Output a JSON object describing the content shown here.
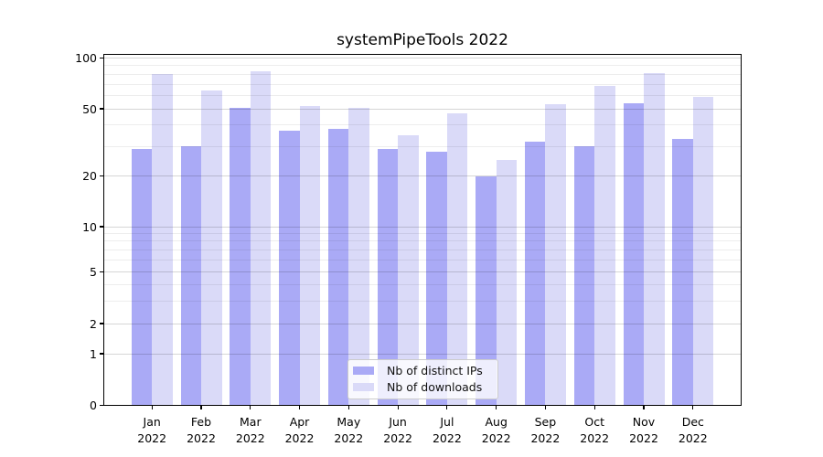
{
  "chart_data": {
    "type": "bar",
    "title": "systemPipeTools 2022",
    "year": "2022",
    "months": [
      "Jan",
      "Feb",
      "Mar",
      "Apr",
      "May",
      "Jun",
      "Jul",
      "Aug",
      "Sep",
      "Oct",
      "Nov",
      "Dec"
    ],
    "series": [
      {
        "name": "Nb of distinct IPs",
        "color": "#aaaaf6",
        "values": [
          29,
          30,
          51,
          37,
          38,
          29,
          28,
          20,
          32,
          30,
          54,
          33
        ]
      },
      {
        "name": "Nb of downloads",
        "color": "#dadaf8",
        "values": [
          80,
          64,
          84,
          52,
          51,
          35,
          47,
          25,
          53,
          68,
          81,
          59
        ]
      }
    ],
    "yscale": "log-like (compressed below 10, linear 0 to 1)",
    "yticks": [
      0,
      1,
      2,
      5,
      10,
      20,
      50,
      100
    ],
    "yticks_minor": [
      3,
      4,
      6,
      7,
      8,
      9,
      30,
      40,
      60,
      70,
      80,
      90
    ],
    "ylim": [
      0,
      104
    ],
    "xlabel": "",
    "ylabel": "",
    "grid": true,
    "legend_position": "lower center"
  },
  "colors": {
    "bar_distinct_ips": "#aaaaf6",
    "bar_downloads": "#dadaf8",
    "grid_major": "rgba(0,0,0,0.16)",
    "grid_minor": "rgba(0,0,0,0.07)",
    "spine": "#000000",
    "text": "#000000"
  }
}
